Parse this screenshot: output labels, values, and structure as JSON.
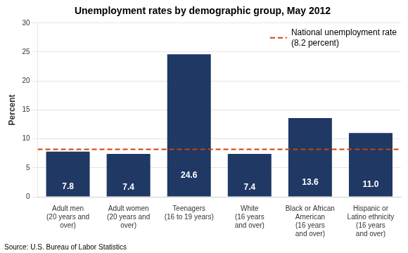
{
  "chart_data": {
    "type": "bar",
    "title": "Unemployment rates by demographic group, May 2012",
    "categories": [
      "Adult men\n(20 years and\nover)",
      "Adult women\n(20 years and\nover)",
      "Teenagers\n(16 to 19 years)",
      "White\n(16 years\nand over)",
      "Black or African\nAmerican\n(16 years\nand over)",
      "Hispanic or\nLatino ethnicity\n(16 years\nand over)"
    ],
    "values": [
      7.8,
      7.4,
      24.6,
      7.4,
      13.6,
      11.0
    ],
    "value_labels": [
      "7.8",
      "7.4",
      "24.6",
      "7.4",
      "13.6",
      "11.0"
    ],
    "data_labels": true,
    "color": "#1F3864",
    "reference_line": {
      "value": 8.2,
      "label": "National unemployment rate\n(8.2 percent)",
      "color": "#CC4400",
      "line_style": "dashed"
    },
    "legend": "upper right",
    "ylabel": "Percent",
    "ylim": [
      0,
      30
    ],
    "yticks": [
      0,
      5,
      10,
      15,
      20,
      25,
      30
    ],
    "grid": true,
    "source": "Source: U.S. Bureau of Labor Statistics"
  }
}
